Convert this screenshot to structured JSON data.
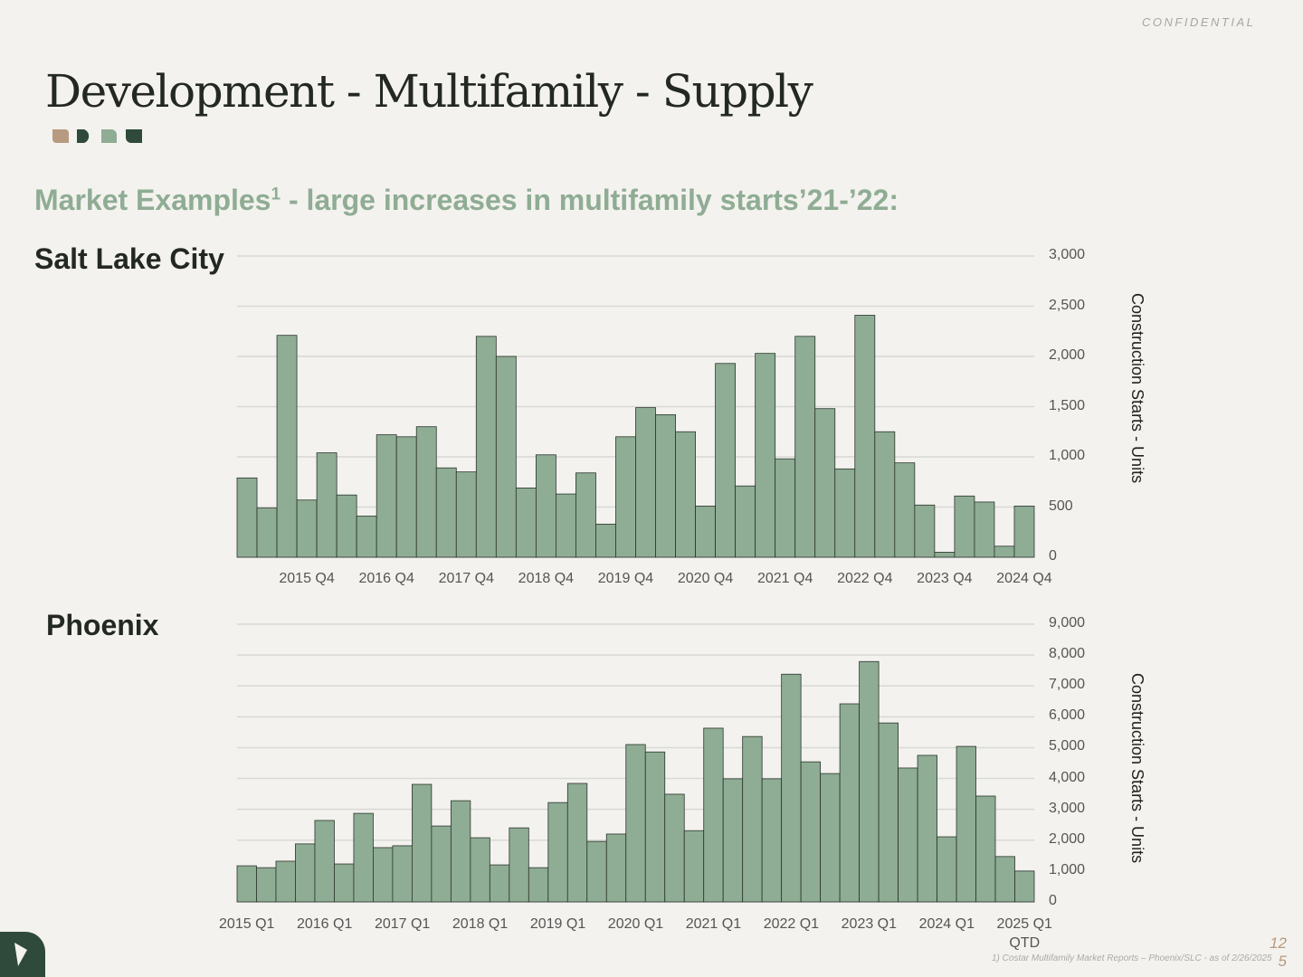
{
  "header": {
    "confidential": "CONFIDENTIAL",
    "title": "Development - Multifamily - Supply",
    "subtitle": {
      "text": "Market Examples",
      "footnote_mark": "1",
      "rest": " - large increases in multifamily starts’21-’22:"
    }
  },
  "chart_data": [
    {
      "type": "bar",
      "title": "Salt Lake City",
      "y_axis_label": "Construction Starts - Units",
      "color": "#8fac94",
      "grid": true,
      "categories": [
        null,
        null,
        null,
        "2015 Q4",
        null,
        null,
        null,
        "2016 Q4",
        null,
        null,
        null,
        "2017 Q4",
        null,
        null,
        null,
        "2018 Q4",
        null,
        null,
        null,
        "2019 Q4",
        null,
        null,
        null,
        "2020 Q4",
        null,
        null,
        null,
        "2021 Q4",
        null,
        null,
        null,
        "2022 Q4",
        null,
        null,
        null,
        "2023 Q4",
        null,
        null,
        null,
        "2024 Q4"
      ],
      "values": [
        790,
        490,
        2210,
        570,
        1040,
        620,
        410,
        1220,
        1200,
        1300,
        890,
        850,
        2200,
        2000,
        690,
        1020,
        630,
        840,
        330,
        1200,
        1490,
        1420,
        1250,
        510,
        1930,
        710,
        2030,
        980,
        2200,
        1480,
        880,
        2410,
        1250,
        940,
        520,
        50,
        610,
        550,
        110,
        510
      ],
      "ylim": [
        0,
        3000
      ],
      "yticks": [
        0,
        500,
        {
          "value": 1000,
          "label": "1,000"
        },
        {
          "value": 1500,
          "label": "1,500"
        },
        {
          "value": 2000,
          "label": "2,000"
        },
        {
          "value": 2500,
          "label": "2,500"
        },
        {
          "value": 3000,
          "label": "3,000"
        }
      ]
    },
    {
      "type": "bar",
      "title": "Phoenix",
      "y_axis_label": "Construction Starts - Units",
      "color": "#8fac94",
      "grid": true,
      "categories": [
        "2015 Q1",
        null,
        null,
        null,
        "2016 Q1",
        null,
        null,
        null,
        "2017 Q1",
        null,
        null,
        null,
        "2018 Q1",
        null,
        null,
        null,
        "2019 Q1",
        null,
        null,
        null,
        "2020 Q1",
        null,
        null,
        null,
        "2021 Q1",
        null,
        null,
        null,
        "2022 Q1",
        null,
        null,
        null,
        "2023 Q1",
        null,
        null,
        null,
        "2024 Q1",
        null,
        null,
        null,
        "2025 Q1 QTD"
      ],
      "values": [
        1170,
        1110,
        1320,
        1880,
        2640,
        1230,
        2870,
        1760,
        1820,
        3810,
        2460,
        3280,
        2080,
        1200,
        2400,
        1110,
        3220,
        3840,
        1960,
        2200,
        5100,
        4860,
        3490,
        2310,
        5630,
        3990,
        5360,
        3990,
        7380,
        4540,
        4160,
        6420,
        7790,
        5800,
        4340,
        4750,
        2110,
        5040,
        3430,
        1470,
        1000
      ],
      "ylim": [
        0,
        9000
      ],
      "yticks": [
        0,
        {
          "value": 1000,
          "label": "1,000"
        },
        {
          "value": 2000,
          "label": "2,000"
        },
        {
          "value": 3000,
          "label": "3,000"
        },
        {
          "value": 4000,
          "label": "4,000"
        },
        {
          "value": 5000,
          "label": "5,000"
        },
        {
          "value": 6000,
          "label": "6,000"
        },
        {
          "value": 7000,
          "label": "7,000"
        },
        {
          "value": 8000,
          "label": "8,000"
        },
        {
          "value": 9000,
          "label": "9,000"
        }
      ]
    }
  ],
  "footer": {
    "footnote": "1) Costar Multifamily Market Reports – Phoenix/SLC - as of 2/26/2025",
    "page_number": "125"
  }
}
